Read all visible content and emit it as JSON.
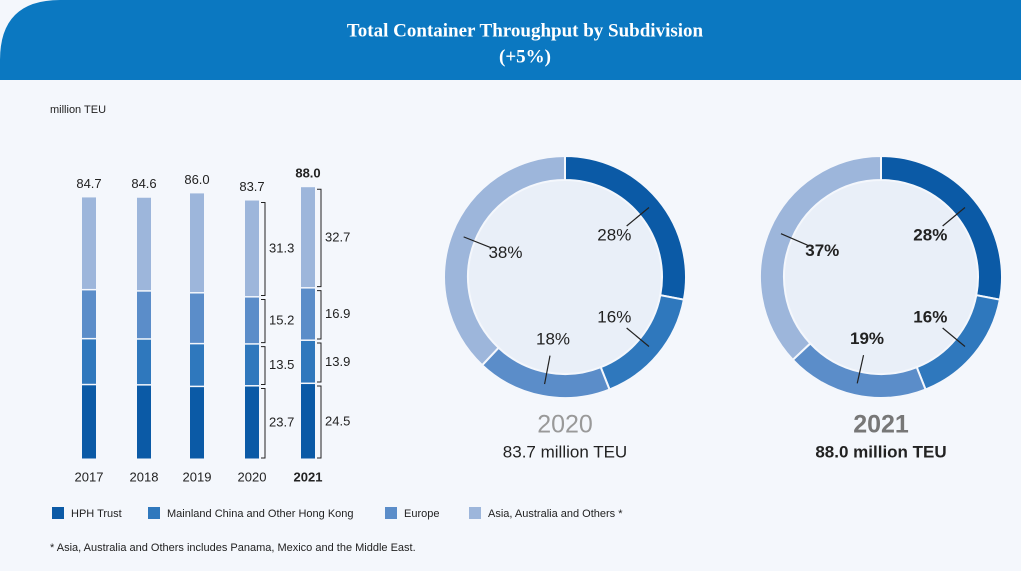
{
  "header": {
    "title": "Total Container Throughput by Subdivision",
    "subtitle": "(+5%)"
  },
  "unit": "million TEU",
  "chart_data": [
    {
      "type": "stacked_bar",
      "categories": [
        "2017",
        "2018",
        "2019",
        "2020",
        "2021"
      ],
      "series": [
        {
          "name": "HPH Trust",
          "color": "#0b5aa6",
          "values": [
            24.1,
            24.0,
            23.5,
            23.7,
            24.5
          ],
          "value_labels": [
            null,
            null,
            null,
            "23.7",
            "24.5"
          ]
        },
        {
          "name": "Mainland China and Other Hong Kong",
          "color": "#2f78bd",
          "values": [
            14.8,
            14.8,
            13.8,
            13.5,
            13.9
          ],
          "value_labels": [
            null,
            null,
            null,
            "13.5",
            "13.9"
          ]
        },
        {
          "name": "Europe",
          "color": "#5b8dc9",
          "values": [
            15.8,
            15.5,
            16.4,
            15.2,
            16.9
          ],
          "value_labels": [
            null,
            null,
            null,
            "15.2",
            "16.9"
          ]
        },
        {
          "name": "Asia, Australia and Others *",
          "color": "#9db6db",
          "values": [
            30.0,
            30.3,
            32.3,
            31.3,
            32.7
          ],
          "value_labels": [
            null,
            null,
            null,
            "31.3",
            "32.7"
          ]
        }
      ],
      "totals": [
        84.7,
        84.6,
        86.0,
        83.7,
        88.0
      ],
      "total_labels": [
        "84.7",
        "84.6",
        "86.0",
        "83.7",
        "88.0"
      ]
    },
    {
      "type": "donut",
      "title": "2020",
      "subtitle": "83.7 million TEU",
      "values": [
        28,
        16,
        18,
        38
      ],
      "value_labels": [
        "28%",
        "16%",
        "18%",
        "38%"
      ],
      "colors": [
        "#0b5aa6",
        "#2f78bd",
        "#5b8dc9",
        "#9db6db"
      ]
    },
    {
      "type": "donut",
      "title": "2021",
      "subtitle": "88.0 million TEU",
      "values": [
        28,
        16,
        19,
        37
      ],
      "value_labels": [
        "28%",
        "16%",
        "19%",
        "37%"
      ],
      "colors": [
        "#0b5aa6",
        "#2f78bd",
        "#5b8dc9",
        "#9db6db"
      ]
    }
  ],
  "footnote": "* Asia, Australia and Others includes Panama, Mexico and the Middle East."
}
